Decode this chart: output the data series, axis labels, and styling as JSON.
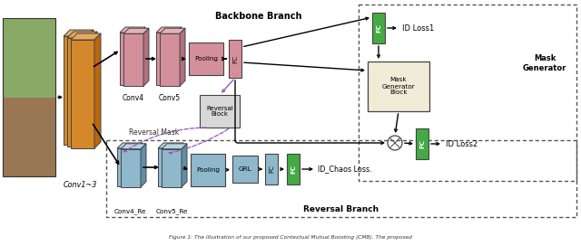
{
  "bg_color": "#ffffff",
  "backbone_label": "Backbone Branch",
  "reversal_label": "Reversal Branch",
  "mask_gen_label": "Mask\nGenerator",
  "reversal_mask_label": "Reversal Mask",
  "conv13_label": "Conv1~3",
  "conv4_label": "Conv4",
  "conv5_label": "Conv5",
  "pooling_label": "Pooling",
  "fc_label": "FC",
  "reversal_block_label": "Reversal\nBlock",
  "mask_gen_block_label": "Mask\nGenerator\nBlock",
  "conv4re_label": "Conv4_Re",
  "conv5re_label": "Conv5_Re",
  "pooling2_label": "Pooling",
  "grl_label": "GRL",
  "id_loss1_label": "ID Loss1",
  "id_loss2_label": "ID Loss2",
  "id_chaos_label": "ID_Chaos Loss.",
  "caption": "Figure 1: The illustration of our proposed Contextual Mutual Boosting (CMB). The proposed",
  "orange_color": "#D4882A",
  "orange_dark": "#B86A10",
  "orange_light": "#E8AA60",
  "pink_color": "#D4909A",
  "pink_dark": "#B07080",
  "pink_light": "#E8B0B8",
  "blue_color": "#90B8CC",
  "blue_dark": "#6090A8",
  "blue_light": "#B8D4E0",
  "green_color": "#44AA44",
  "cream_color": "#F0ECD8",
  "light_gray": "#D8D8D8",
  "edge_color": "#444444"
}
